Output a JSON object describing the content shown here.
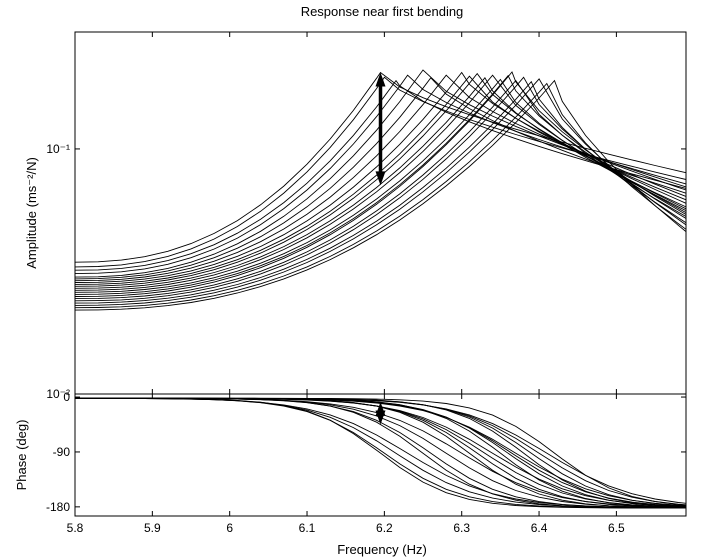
{
  "chart_data": {
    "type": "line",
    "title": "Response near first bending",
    "xlabel": "Frequency (Hz)",
    "x_range": [
      5.8,
      6.59
    ],
    "x_ticks": [
      5.8,
      5.9,
      6.0,
      6.1,
      6.2,
      6.3,
      6.4,
      6.5
    ],
    "x_tick_labels": [
      "5.8",
      "5.9",
      "6",
      "6.1",
      "6.2",
      "6.3",
      "6.4",
      "6.5"
    ],
    "annotation": {
      "type": "double-arrow",
      "frequency": 6.195
    },
    "subplots": [
      {
        "name": "amplitude",
        "ylabel": "Amplitude (ms⁻²/N)",
        "yscale": "log",
        "ylim": [
          0.01,
          0.3
        ],
        "y_ticks": [
          0.01,
          0.1
        ],
        "y_tick_labels": [
          "10⁻²",
          "10⁻¹"
        ],
        "arrow_range": [
          0.205,
          0.071
        ],
        "series": [
          {
            "peak_freq": 6.195,
            "peak_amp": 0.205,
            "base": 0.0345,
            "end": 0.08
          },
          {
            "peak_freq": 6.2,
            "peak_amp": 0.196,
            "base": 0.033,
            "end": 0.075
          },
          {
            "peak_freq": 6.215,
            "peak_amp": 0.19,
            "base": 0.032,
            "end": 0.069
          },
          {
            "peak_freq": 6.23,
            "peak_amp": 0.2,
            "base": 0.031,
            "end": 0.072
          },
          {
            "peak_freq": 6.25,
            "peak_amp": 0.21,
            "base": 0.03,
            "end": 0.07
          },
          {
            "peak_freq": 6.26,
            "peak_amp": 0.195,
            "base": 0.0295,
            "end": 0.066
          },
          {
            "peak_freq": 6.28,
            "peak_amp": 0.2,
            "base": 0.029,
            "end": 0.068
          },
          {
            "peak_freq": 6.3,
            "peak_amp": 0.205,
            "base": 0.0285,
            "end": 0.064
          },
          {
            "peak_freq": 6.31,
            "peak_amp": 0.198,
            "base": 0.028,
            "end": 0.062
          },
          {
            "peak_freq": 6.32,
            "peak_amp": 0.203,
            "base": 0.0275,
            "end": 0.06
          },
          {
            "peak_freq": 6.33,
            "peak_amp": 0.195,
            "base": 0.027,
            "end": 0.058
          },
          {
            "peak_freq": 6.34,
            "peak_amp": 0.2,
            "base": 0.0265,
            "end": 0.057
          },
          {
            "peak_freq": 6.35,
            "peak_amp": 0.192,
            "base": 0.026,
            "end": 0.056
          },
          {
            "peak_freq": 6.36,
            "peak_amp": 0.199,
            "base": 0.0255,
            "end": 0.055
          },
          {
            "peak_freq": 6.365,
            "peak_amp": 0.206,
            "base": 0.025,
            "end": 0.054
          },
          {
            "peak_freq": 6.37,
            "peak_amp": 0.19,
            "base": 0.0245,
            "end": 0.053
          },
          {
            "peak_freq": 6.38,
            "peak_amp": 0.196,
            "base": 0.024,
            "end": 0.052
          },
          {
            "peak_freq": 6.39,
            "peak_amp": 0.188,
            "base": 0.0235,
            "end": 0.05
          },
          {
            "peak_freq": 6.4,
            "peak_amp": 0.193,
            "base": 0.023,
            "end": 0.049
          },
          {
            "peak_freq": 6.41,
            "peak_amp": 0.185,
            "base": 0.0225,
            "end": 0.047
          },
          {
            "peak_freq": 6.42,
            "peak_amp": 0.19,
            "base": 0.022,
            "end": 0.046
          }
        ]
      },
      {
        "name": "phase",
        "ylabel": "Phase (deg)",
        "ylim": [
          -195,
          5
        ],
        "y_ticks": [
          0,
          -90,
          -180
        ],
        "y_tick_labels": [
          "0",
          "-90",
          "-180"
        ],
        "arrow_range": [
          -8,
          -45
        ],
        "series_transition_freqs": [
          6.195,
          6.2,
          6.215,
          6.23,
          6.25,
          6.26,
          6.28,
          6.3,
          6.31,
          6.32,
          6.33,
          6.34,
          6.35,
          6.36,
          6.365,
          6.37,
          6.38,
          6.39,
          6.4,
          6.41,
          6.42
        ]
      }
    ]
  }
}
